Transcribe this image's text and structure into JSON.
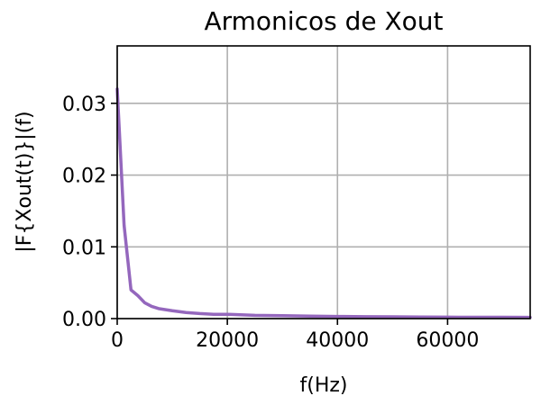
{
  "chart_data": {
    "type": "line",
    "title": "Armonicos de Xout",
    "xlabel": "f(Hz)",
    "ylabel": "|F{Xout(t)}|(f)",
    "xlim": [
      0,
      75000
    ],
    "ylim": [
      0,
      0.038
    ],
    "grid": true,
    "x_ticks": [
      0,
      20000,
      40000,
      60000
    ],
    "x_tick_labels": [
      "0",
      "20000",
      "40000",
      "60000"
    ],
    "y_ticks": [
      0,
      0.01,
      0.02,
      0.03
    ],
    "y_tick_labels": [
      "0.00",
      "0.01",
      "0.02",
      "0.03"
    ],
    "series": [
      {
        "color": "#9467bd",
        "x": [
          0,
          1250,
          2500,
          3750,
          5000,
          6250,
          7500,
          10000,
          12500,
          15000,
          17500,
          20000,
          25000,
          30000,
          35000,
          40000,
          45000,
          50000,
          55000,
          60000,
          65000,
          70000,
          75000
        ],
        "y": [
          0.032,
          0.013,
          0.004,
          0.0032,
          0.0022,
          0.0017,
          0.0014,
          0.0011,
          0.00085,
          0.0007,
          0.0006,
          0.0006,
          0.00045,
          0.0004,
          0.00035,
          0.0003,
          0.00027,
          0.00025,
          0.00022,
          0.0002,
          0.00019,
          0.00018,
          0.00017
        ]
      }
    ]
  }
}
